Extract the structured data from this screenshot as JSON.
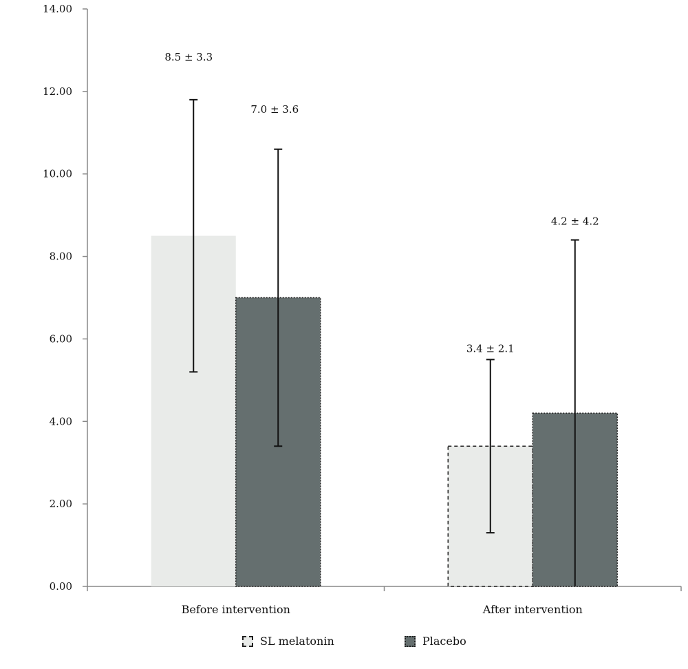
{
  "chart_data": {
    "type": "bar",
    "title": "",
    "xlabel": "",
    "ylabel": "",
    "ylim": [
      0,
      14
    ],
    "yticks": [
      "0.00",
      "2.00",
      "4.00",
      "6.00",
      "8.00",
      "10.00",
      "12.00",
      "14.00"
    ],
    "categories": [
      "Before intervention",
      "After intervention"
    ],
    "series": [
      {
        "name": "SL melatonin",
        "color": "#e9ebe9",
        "values": [
          8.5,
          3.4
        ],
        "error": [
          3.3,
          2.1
        ],
        "labels": [
          "8.5 ± 3.3",
          "3.4 ± 2.1"
        ]
      },
      {
        "name": "Placebo",
        "color": "#656f6f",
        "values": [
          7.0,
          4.2
        ],
        "error": [
          3.6,
          4.2
        ],
        "labels": [
          "7.0 ± 3.6",
          "4.2 ± 4.2"
        ]
      }
    ],
    "legend_position": "bottom",
    "grid": false
  },
  "legend": {
    "sl_label": "SL melatonin",
    "placebo_label": "Placebo"
  }
}
